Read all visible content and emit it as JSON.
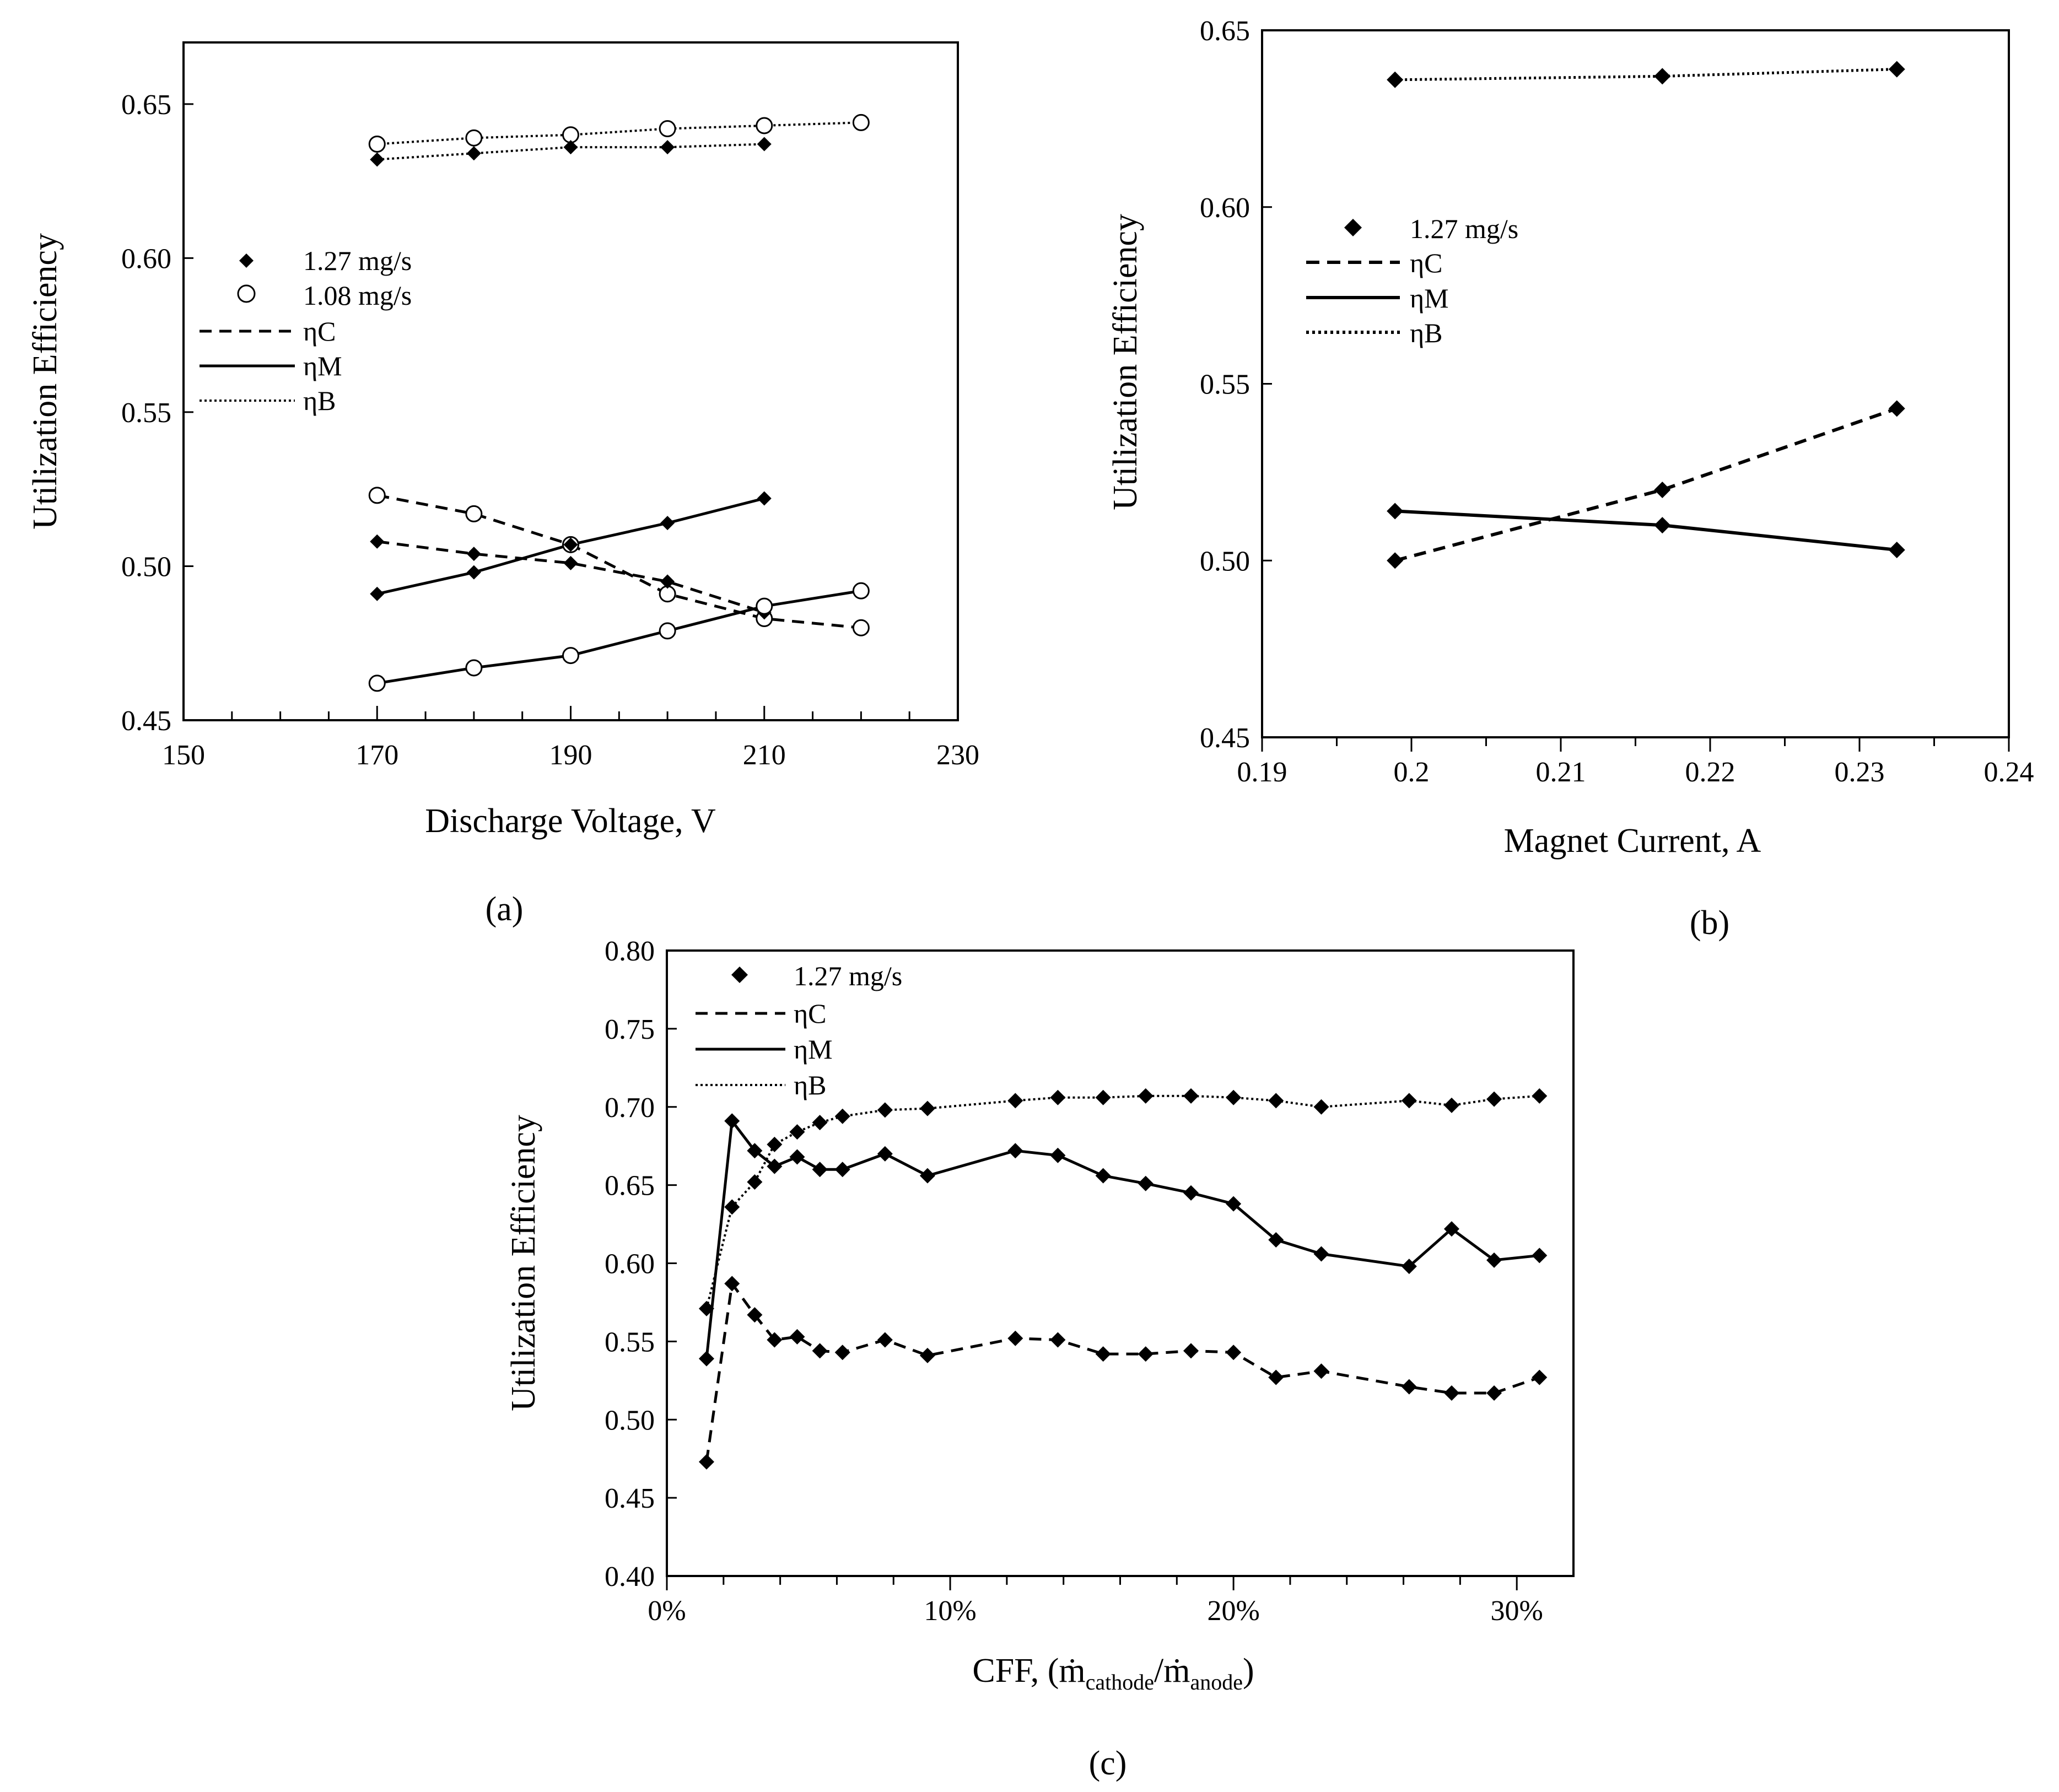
{
  "figure": {
    "panel_labels": [
      "(a)",
      "(b)",
      "(c)"
    ]
  },
  "chart_data": [
    {
      "id": "a",
      "type": "line",
      "xlabel": "Discharge Voltage, V",
      "ylabel": "Utilization Efficiency",
      "xlim": [
        150,
        230
      ],
      "ylim": [
        0.45,
        0.67
      ],
      "xticks": [
        150,
        170,
        190,
        210,
        230
      ],
      "xtick_labels": [
        "150",
        "170",
        "190",
        "210",
        "230"
      ],
      "xminor": [
        155,
        160,
        165,
        175,
        180,
        185,
        195,
        200,
        205,
        215,
        220,
        225
      ],
      "yticks": [
        0.45,
        0.5,
        0.55,
        0.6,
        0.65
      ],
      "ytick_labels": [
        "0.45",
        "0.50",
        "0.55",
        "0.60",
        "0.65"
      ],
      "legend": [
        {
          "label": "1.27 mg/s",
          "kind": "marker",
          "marker": "diamond"
        },
        {
          "label": "1.08 mg/s",
          "kind": "marker",
          "marker": "circle"
        },
        {
          "label": "ηC",
          "kind": "line",
          "dash": "dashed"
        },
        {
          "label": "ηM",
          "kind": "line",
          "dash": "solid"
        },
        {
          "label": "ηB",
          "kind": "line",
          "dash": "dotted"
        }
      ],
      "series": [
        {
          "name": "ηB 1.08 mg/s",
          "dash": "dotted",
          "marker": "circle",
          "x": [
            170,
            180,
            190,
            200,
            210,
            220
          ],
          "y": [
            0.637,
            0.639,
            0.64,
            0.642,
            0.643,
            0.644
          ]
        },
        {
          "name": "ηB 1.27 mg/s",
          "dash": "dotted",
          "marker": "diamond",
          "x": [
            170,
            180,
            190,
            200,
            210
          ],
          "y": [
            0.632,
            0.634,
            0.636,
            0.636,
            0.637
          ]
        },
        {
          "name": "ηC 1.08 mg/s",
          "dash": "dashed",
          "marker": "circle",
          "x": [
            170,
            180,
            190,
            200,
            210,
            220
          ],
          "y": [
            0.523,
            0.517,
            0.507,
            0.491,
            0.483,
            0.48
          ]
        },
        {
          "name": "ηC 1.27 mg/s",
          "dash": "dashed",
          "marker": "diamond",
          "x": [
            170,
            180,
            190,
            200,
            210
          ],
          "y": [
            0.508,
            0.504,
            0.501,
            0.495,
            0.485
          ]
        },
        {
          "name": "ηM 1.27 mg/s",
          "dash": "solid",
          "marker": "diamond",
          "x": [
            170,
            180,
            190,
            200,
            210
          ],
          "y": [
            0.491,
            0.498,
            0.507,
            0.514,
            0.522
          ]
        },
        {
          "name": "ηM 1.08 mg/s",
          "dash": "solid",
          "marker": "circle",
          "x": [
            170,
            180,
            190,
            200,
            210,
            220
          ],
          "y": [
            0.462,
            0.467,
            0.471,
            0.479,
            0.487,
            0.492
          ]
        }
      ]
    },
    {
      "id": "b",
      "type": "line",
      "xlabel": "Magnet Current, A",
      "ylabel": "Utilization Efficiency",
      "xlim": [
        0.19,
        0.24
      ],
      "ylim": [
        0.45,
        0.65
      ],
      "xticks": [
        0.19,
        0.2,
        0.21,
        0.22,
        0.23,
        0.24
      ],
      "xtick_labels": [
        "0.19",
        "0.2",
        "0.21",
        "0.22",
        "0.23",
        "0.24"
      ],
      "xminor": [
        0.195,
        0.205,
        0.215,
        0.225,
        0.235
      ],
      "yticks": [
        0.45,
        0.5,
        0.55,
        0.6,
        0.65
      ],
      "ytick_labels": [
        "0.45",
        "0.50",
        "0.55",
        "0.60",
        "0.65"
      ],
      "legend": [
        {
          "label": "1.27 mg/s",
          "kind": "marker",
          "marker": "diamond"
        },
        {
          "label": "ηC",
          "kind": "line",
          "dash": "dashed"
        },
        {
          "label": "ηM",
          "kind": "line",
          "dash": "solid"
        },
        {
          "label": "ηB",
          "kind": "line",
          "dash": "dotted"
        }
      ],
      "series": [
        {
          "name": "ηB",
          "dash": "dotted",
          "marker": "diamond",
          "x": [
            0.1989,
            0.2168,
            0.2325
          ],
          "y": [
            0.636,
            0.637,
            0.639
          ]
        },
        {
          "name": "ηC",
          "dash": "dashed",
          "marker": "diamond",
          "x": [
            0.1989,
            0.2168,
            0.2325
          ],
          "y": [
            0.5,
            0.52,
            0.543
          ]
        },
        {
          "name": "ηM",
          "dash": "solid",
          "marker": "diamond",
          "x": [
            0.1989,
            0.2168,
            0.2325
          ],
          "y": [
            0.514,
            0.51,
            0.503
          ]
        }
      ]
    },
    {
      "id": "c",
      "type": "line",
      "xlabel": "CFF, (ṁ",
      "xlabel_sub1": "cathode",
      "xlabel_mid": "/ṁ",
      "xlabel_sub2": "anode",
      "xlabel_end": ")",
      "ylabel": "Utilization Efficiency",
      "xlim": [
        0,
        0.32
      ],
      "ylim": [
        0.4,
        0.8
      ],
      "xticks": [
        0,
        0.1,
        0.2,
        0.3
      ],
      "xtick_labels": [
        "0%",
        "10%",
        "20%",
        "30%"
      ],
      "xminor": [
        0.02,
        0.04,
        0.06,
        0.08,
        0.12,
        0.14,
        0.16,
        0.18,
        0.22,
        0.24,
        0.26,
        0.28
      ],
      "yticks": [
        0.4,
        0.45,
        0.5,
        0.55,
        0.6,
        0.65,
        0.7,
        0.75,
        0.8
      ],
      "ytick_labels": [
        "0.40",
        "0.45",
        "0.50",
        "0.55",
        "0.60",
        "0.65",
        "0.70",
        "0.75",
        "0.80"
      ],
      "legend": [
        {
          "label": "1.27 mg/s",
          "kind": "marker",
          "marker": "diamond"
        },
        {
          "label": "ηC",
          "kind": "line",
          "dash": "dashed"
        },
        {
          "label": "ηM",
          "kind": "line",
          "dash": "solid"
        },
        {
          "label": "ηB",
          "kind": "line",
          "dash": "dotted"
        }
      ],
      "series": [
        {
          "name": "ηB",
          "dash": "dotted",
          "marker": "diamond",
          "x": [
            0.014,
            0.023,
            0.031,
            0.038,
            0.046,
            0.054,
            0.062,
            0.077,
            0.092,
            0.123,
            0.138,
            0.154,
            0.169,
            0.185,
            0.2,
            0.215,
            0.231,
            0.262,
            0.277,
            0.292,
            0.308
          ],
          "y": [
            0.571,
            0.636,
            0.652,
            0.676,
            0.684,
            0.69,
            0.694,
            0.698,
            0.699,
            0.704,
            0.706,
            0.706,
            0.707,
            0.707,
            0.706,
            0.704,
            0.7,
            0.704,
            0.701,
            0.705,
            0.707
          ]
        },
        {
          "name": "ηM",
          "dash": "solid",
          "marker": "diamond",
          "x": [
            0.014,
            0.023,
            0.031,
            0.038,
            0.046,
            0.054,
            0.062,
            0.077,
            0.092,
            0.123,
            0.138,
            0.154,
            0.169,
            0.185,
            0.2,
            0.215,
            0.231,
            0.262,
            0.277,
            0.292,
            0.308
          ],
          "y": [
            0.539,
            0.691,
            0.672,
            0.662,
            0.668,
            0.66,
            0.66,
            0.67,
            0.656,
            0.672,
            0.669,
            0.656,
            0.651,
            0.645,
            0.638,
            0.615,
            0.606,
            0.598,
            0.622,
            0.602,
            0.605
          ]
        },
        {
          "name": "ηC",
          "dash": "dashed",
          "marker": "diamond",
          "x": [
            0.014,
            0.023,
            0.031,
            0.038,
            0.046,
            0.054,
            0.062,
            0.077,
            0.092,
            0.123,
            0.138,
            0.154,
            0.169,
            0.185,
            0.2,
            0.215,
            0.231,
            0.262,
            0.277,
            0.292,
            0.308
          ],
          "y": [
            0.473,
            0.587,
            0.567,
            0.551,
            0.553,
            0.544,
            0.543,
            0.551,
            0.541,
            0.552,
            0.551,
            0.542,
            0.542,
            0.544,
            0.543,
            0.527,
            0.531,
            0.521,
            0.517,
            0.517,
            0.527
          ]
        }
      ]
    }
  ]
}
